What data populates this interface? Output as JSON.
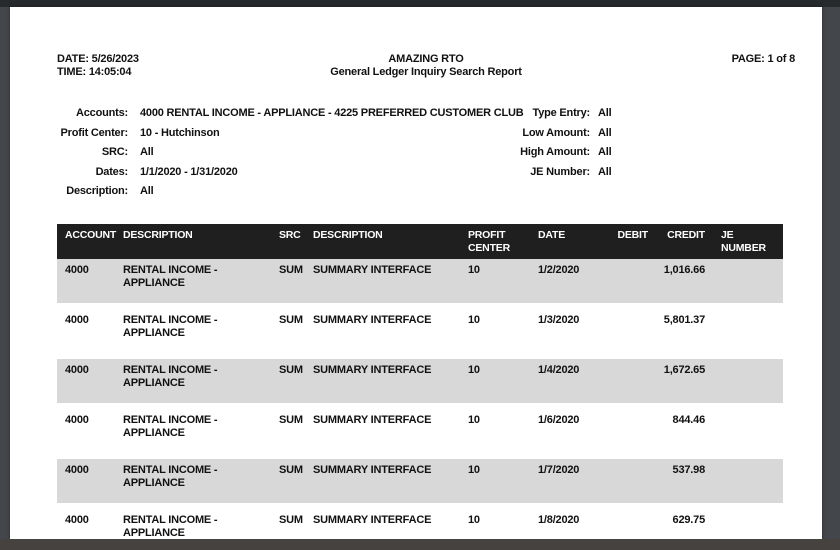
{
  "header": {
    "date_label": "DATE:",
    "date_value": "5/26/2023",
    "time_label": "TIME:",
    "time_value": "14:05:04",
    "company_name": "AMAZING RTO",
    "report_title": "General Ledger Inquiry Search Report",
    "page_label": "PAGE:",
    "page_value": "1 of 8"
  },
  "filters": {
    "left": [
      {
        "label": "Accounts:",
        "value": "4000 RENTAL INCOME - APPLIANCE - 4225 PREFERRED CUSTOMER CLUB"
      },
      {
        "label": "Profit Center:",
        "value": "10 - Hutchinson"
      },
      {
        "label": "SRC:",
        "value": "All"
      },
      {
        "label": "Dates:",
        "value": "1/1/2020 - 1/31/2020"
      },
      {
        "label": "Description:",
        "value": "All"
      }
    ],
    "right": [
      {
        "label": "Type Entry:",
        "value": "All"
      },
      {
        "label": "Low Amount:",
        "value": "All"
      },
      {
        "label": "High Amount:",
        "value": "All"
      },
      {
        "label": "JE Number:",
        "value": "All"
      }
    ]
  },
  "table": {
    "columns": [
      "ACCOUNT",
      "DESCRIPTION",
      "SRC",
      "DESCRIPTION",
      "PROFIT CENTER",
      "DATE",
      "DEBIT",
      "CREDIT",
      "JE NUMBER"
    ],
    "rows": [
      {
        "account": "4000",
        "description": "RENTAL INCOME - APPLIANCE",
        "src": "SUM",
        "src_description": "SUMMARY INTERFACE",
        "profit_center": "10",
        "date": "1/2/2020",
        "debit": "",
        "credit": "1,016.66",
        "je_number": ""
      },
      {
        "account": "4000",
        "description": "RENTAL INCOME - APPLIANCE",
        "src": "SUM",
        "src_description": "SUMMARY INTERFACE",
        "profit_center": "10",
        "date": "1/3/2020",
        "debit": "",
        "credit": "5,801.37",
        "je_number": ""
      },
      {
        "account": "4000",
        "description": "RENTAL INCOME - APPLIANCE",
        "src": "SUM",
        "src_description": "SUMMARY INTERFACE",
        "profit_center": "10",
        "date": "1/4/2020",
        "debit": "",
        "credit": "1,672.65",
        "je_number": ""
      },
      {
        "account": "4000",
        "description": "RENTAL INCOME - APPLIANCE",
        "src": "SUM",
        "src_description": "SUMMARY INTERFACE",
        "profit_center": "10",
        "date": "1/6/2020",
        "debit": "",
        "credit": "844.46",
        "je_number": ""
      },
      {
        "account": "4000",
        "description": "RENTAL INCOME - APPLIANCE",
        "src": "SUM",
        "src_description": "SUMMARY INTERFACE",
        "profit_center": "10",
        "date": "1/7/2020",
        "debit": "",
        "credit": "537.98",
        "je_number": ""
      },
      {
        "account": "4000",
        "description": "RENTAL INCOME - APPLIANCE",
        "src": "SUM",
        "src_description": "SUMMARY INTERFACE",
        "profit_center": "10",
        "date": "1/8/2020",
        "debit": "",
        "credit": "629.75",
        "je_number": ""
      }
    ]
  },
  "colors": {
    "table_header_bg": "#1f1f1f",
    "table_header_text": "#ffffff",
    "row_alt_bg": "#d8d8d8",
    "page_bg": "#ffffff",
    "viewer_bg": "#43474b",
    "viewer_top_bar": "#272a2d",
    "viewer_bottom_bar": "#454240",
    "text": "#111111"
  }
}
